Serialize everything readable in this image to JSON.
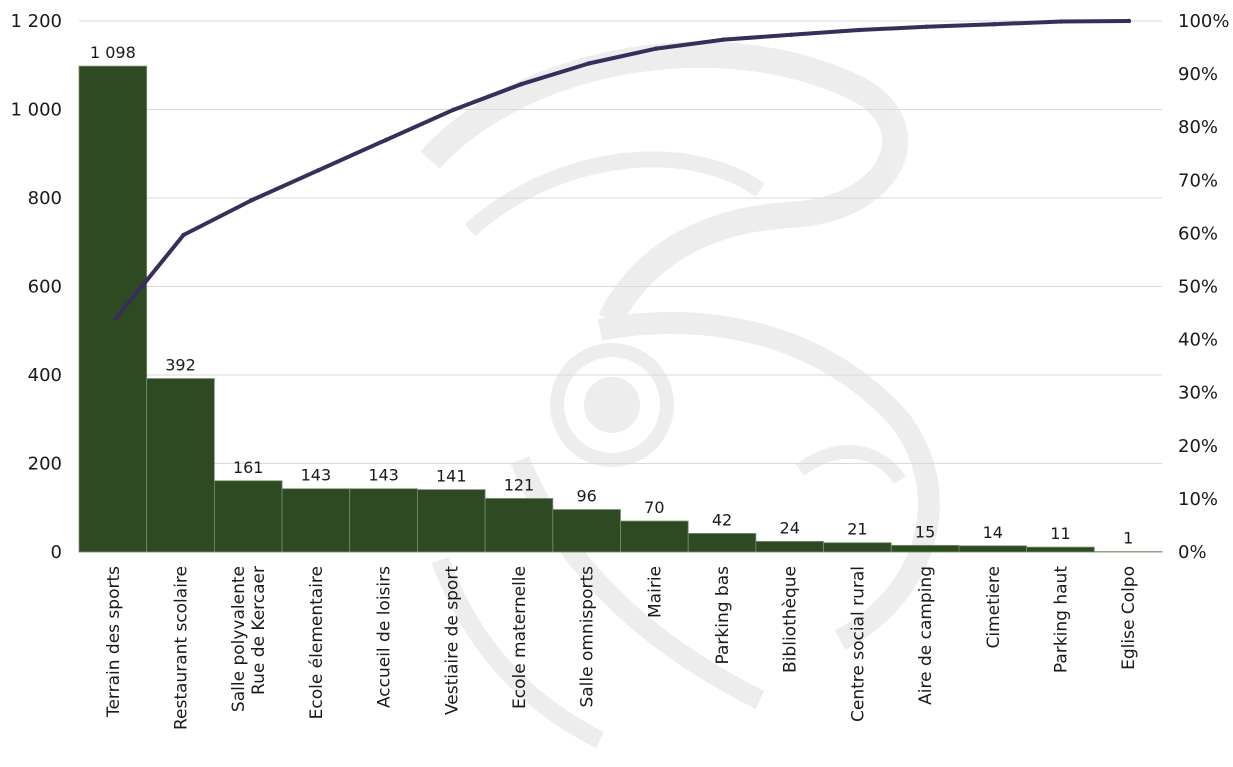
{
  "chart_data": {
    "type": "bar",
    "subtype": "pareto",
    "categories": [
      [
        "Terrain des sports"
      ],
      [
        "Restaurant scolaire"
      ],
      [
        "Salle polyvalente",
        "Rue de Kercaer"
      ],
      [
        "Ecole élementaire"
      ],
      [
        "Accueil de loisirs"
      ],
      [
        "Vestiaire de sport"
      ],
      [
        "Ecole maternelle"
      ],
      [
        "Salle omnisports"
      ],
      [
        "Mairie"
      ],
      [
        "Parking bas"
      ],
      [
        "Bibliothèque"
      ],
      [
        "Centre social rural"
      ],
      [
        "Aire de camping"
      ],
      [
        "Cimetiere"
      ],
      [
        "Parking haut"
      ],
      [
        "Eglise Colpo"
      ]
    ],
    "series": [
      {
        "type": "bar",
        "values": [
          1098,
          392,
          161,
          143,
          143,
          141,
          121,
          96,
          70,
          42,
          24,
          21,
          15,
          14,
          11,
          1
        ],
        "labels": [
          "1 098",
          "392",
          "161",
          "143",
          "143",
          "141",
          "121",
          "96",
          "70",
          "42",
          "24",
          "21",
          "15",
          "14",
          "11",
          "1"
        ],
        "color": "#2d4a22"
      },
      {
        "type": "line",
        "axis": "right",
        "values": [
          44.0,
          59.7,
          66.2,
          71.9,
          77.6,
          83.3,
          88.1,
          92.0,
          94.8,
          96.5,
          97.4,
          98.3,
          98.9,
          99.4,
          99.9,
          100.0
        ],
        "color": "#3a2d5c"
      }
    ],
    "y_left": {
      "ylim": [
        0,
        1200
      ],
      "ticks": [
        "0",
        "200",
        "400",
        "600",
        "800",
        "1 000",
        "1 200"
      ]
    },
    "y_right": {
      "ylim": [
        0,
        100
      ],
      "ticks": [
        "0%",
        "10%",
        "20%",
        "30%",
        "40%",
        "50%",
        "60%",
        "70%",
        "80%",
        "90%",
        "100%"
      ]
    },
    "grid": true
  }
}
